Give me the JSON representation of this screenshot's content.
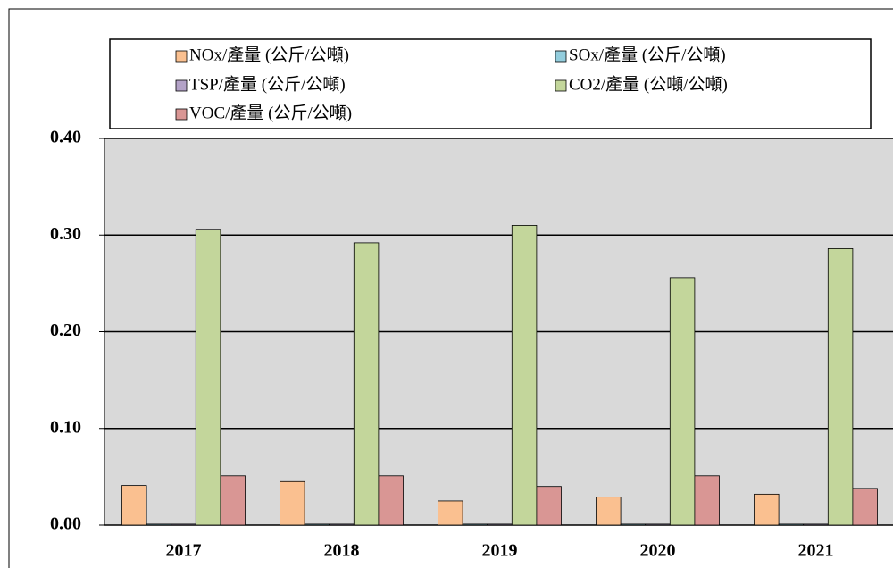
{
  "chart_data": {
    "type": "bar",
    "categories": [
      "2017",
      "2018",
      "2019",
      "2020",
      "2021"
    ],
    "series": [
      {
        "name": "NOx/產量 (公斤/公噸)",
        "color": "#fac090",
        "values": [
          0.041,
          0.045,
          0.025,
          0.029,
          0.032
        ]
      },
      {
        "name": "SOx/產量 (公斤/公噸)",
        "color": "#93cddd",
        "values": [
          0.001,
          0.001,
          0.001,
          0.001,
          0.001
        ]
      },
      {
        "name": "TSP/產量 (公斤/公噸)",
        "color": "#b3a2c7",
        "values": [
          0.001,
          0.001,
          0.001,
          0.001,
          0.001
        ]
      },
      {
        "name": "CO2/產量 (公噸/公噸)",
        "color": "#c3d69b",
        "values": [
          0.306,
          0.292,
          0.31,
          0.256,
          0.286
        ]
      },
      {
        "name": "VOC/產量 (公斤/公噸)",
        "color": "#d99694",
        "values": [
          0.051,
          0.051,
          0.04,
          0.051,
          0.038
        ]
      }
    ],
    "ylim": [
      0,
      0.4
    ],
    "yticks": [
      {
        "value": 0,
        "label": "0.00"
      },
      {
        "value": 0.1,
        "label": "0.10"
      },
      {
        "value": 0.2,
        "label": "0.20"
      },
      {
        "value": 0.3,
        "label": "0.30"
      },
      {
        "value": 0.4,
        "label": "0.40"
      }
    ],
    "grid": true,
    "plot_background": "#d9d9d9"
  }
}
